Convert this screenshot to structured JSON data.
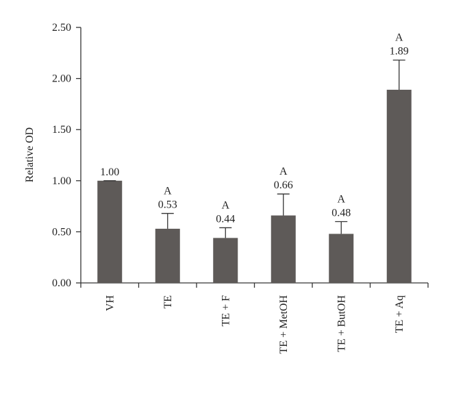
{
  "chart_data": {
    "type": "bar",
    "y_label": "Relative OD",
    "categories": [
      "VH",
      "TE",
      "TE + F",
      "TE + MetOH",
      "TE + ButOH",
      "TE + Aq"
    ],
    "values": [
      1.0,
      0.53,
      0.44,
      0.66,
      0.48,
      1.89
    ],
    "value_labels": [
      "1.00",
      "0.53",
      "0.44",
      "0.66",
      "0.48",
      "1.89"
    ],
    "errors": [
      0,
      0.15,
      0.1,
      0.21,
      0.12,
      0.29
    ],
    "annotations": [
      null,
      "A",
      "A",
      "A",
      "A",
      "A"
    ],
    "color": "#5e5a58",
    "ylim": [
      0,
      2.5
    ],
    "yticks": [
      {
        "value": 0,
        "label": "0.00"
      },
      {
        "value": 0.5,
        "label": "0.50"
      },
      {
        "value": 1,
        "label": "1.00"
      },
      {
        "value": 1.5,
        "label": "1.50"
      },
      {
        "value": 2,
        "label": "2.00"
      },
      {
        "value": 2.5,
        "label": "2.50"
      }
    ]
  }
}
